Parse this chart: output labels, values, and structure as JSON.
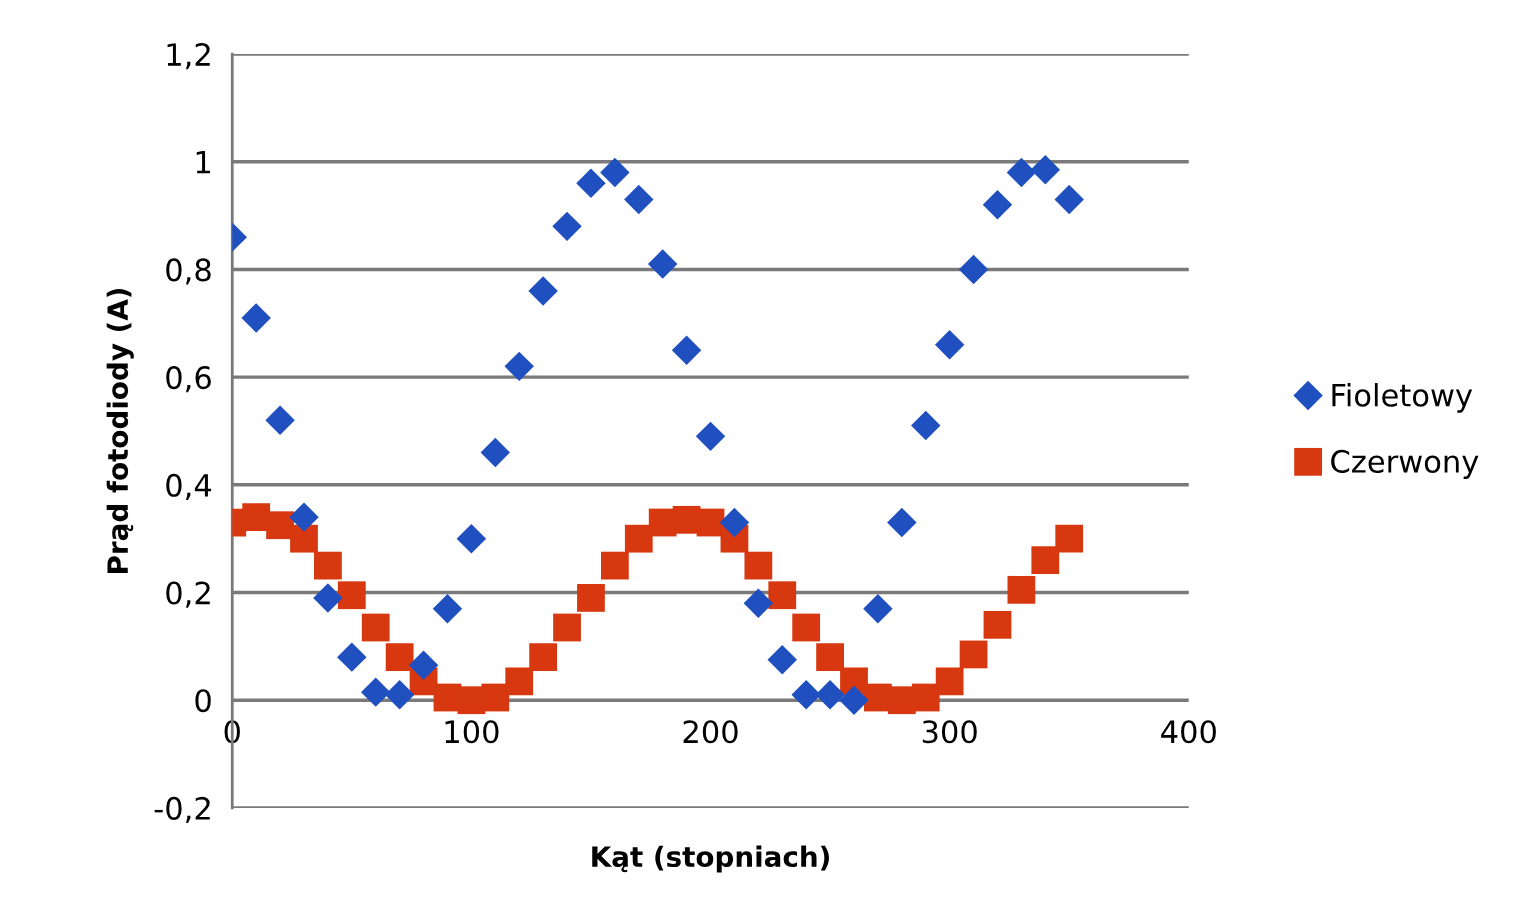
{
  "chart_data": {
    "type": "scatter",
    "xlabel": "Kąt (stopniach)",
    "ylabel": "Prąd fotodiody (A)",
    "x": [
      0,
      10,
      20,
      30,
      40,
      50,
      60,
      70,
      80,
      90,
      100,
      110,
      120,
      130,
      140,
      150,
      160,
      170,
      180,
      190,
      200,
      210,
      220,
      230,
      240,
      250,
      260,
      270,
      280,
      290,
      300,
      310,
      320,
      330,
      340,
      350
    ],
    "series": [
      {
        "name": "Fioletowy",
        "color": "#2050c0",
        "marker": "diamond",
        "values": [
          0.86,
          0.71,
          0.52,
          0.34,
          0.19,
          0.08,
          0.015,
          0.01,
          0.065,
          0.17,
          0.3,
          0.46,
          0.62,
          0.76,
          0.88,
          0.96,
          0.98,
          0.93,
          0.81,
          0.65,
          0.49,
          0.33,
          0.18,
          0.075,
          0.01,
          0.01,
          0.0,
          0.17,
          0.33,
          0.51,
          0.66,
          0.8,
          0.92,
          0.98,
          0.985,
          0.93
        ]
      },
      {
        "name": "Czerwony",
        "color": "#d8380f",
        "marker": "square",
        "values": [
          0.33,
          0.34,
          0.325,
          0.3,
          0.25,
          0.195,
          0.135,
          0.08,
          0.035,
          0.005,
          0.0,
          0.005,
          0.035,
          0.08,
          0.135,
          0.19,
          0.25,
          0.3,
          0.33,
          0.335,
          0.33,
          0.3,
          0.25,
          0.195,
          0.135,
          0.08,
          0.035,
          0.005,
          0.0,
          0.005,
          0.035,
          0.085,
          0.14,
          0.205,
          0.26,
          0.3
        ]
      }
    ],
    "xlim": [
      0,
      400
    ],
    "xticks": [
      0,
      100,
      200,
      300,
      400
    ],
    "ylim": [
      -0.2,
      1.2
    ],
    "yticks": [
      {
        "value": -0.2,
        "label": "-0,2"
      },
      {
        "value": 0,
        "label": "0"
      },
      {
        "value": 0.2,
        "label": "0,2"
      },
      {
        "value": 0.4,
        "label": "0,4"
      },
      {
        "value": 0.6,
        "label": "0,6"
      },
      {
        "value": 0.8,
        "label": "0,8"
      },
      {
        "value": 1,
        "label": "1"
      },
      {
        "value": 1.2,
        "label": "1,2"
      }
    ],
    "grid": "y",
    "legend": "right"
  }
}
